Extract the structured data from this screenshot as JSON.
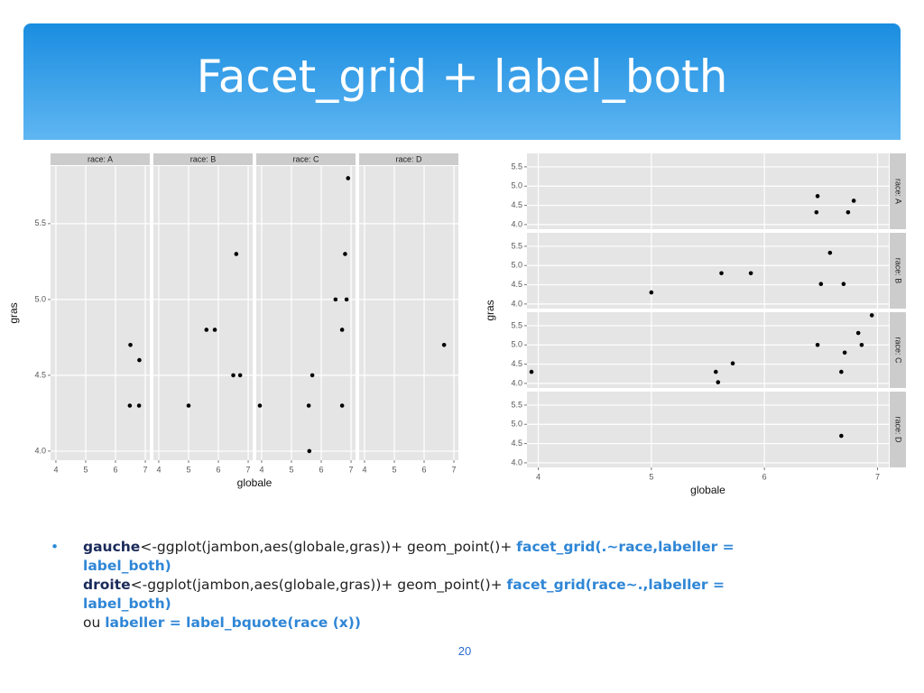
{
  "title": "Facet_grid + label_both",
  "chart_data": [
    {
      "type": "scatter",
      "facet_layout": "cols",
      "xlabel": "globale",
      "ylabel": "gras",
      "xlim": [
        3.82,
        7.15
      ],
      "ylim": [
        3.94,
        5.88
      ],
      "xticks": [
        4,
        5,
        6,
        7
      ],
      "yticks": [
        {
          "value": 4.0,
          "label": "4.0"
        },
        {
          "value": 4.5,
          "label": "4.5"
        },
        {
          "value": 5.0,
          "label": "5.0"
        },
        {
          "value": 5.5,
          "label": "5.5"
        }
      ],
      "grid": true,
      "color": "#000000",
      "facets": [
        {
          "label": "race: A",
          "x": [
            6.5,
            6.8,
            6.48,
            6.79
          ],
          "y": [
            4.7,
            4.6,
            4.3,
            4.3
          ]
        },
        {
          "label": "race: B",
          "x": [
            6.6,
            5.6,
            5.88,
            6.5,
            6.73,
            5.0
          ],
          "y": [
            5.3,
            4.8,
            4.8,
            4.5,
            4.5,
            4.3
          ]
        },
        {
          "label": "race: C",
          "x": [
            6.9,
            6.8,
            6.48,
            6.85,
            6.7,
            5.7,
            3.94,
            5.58,
            6.7,
            5.6
          ],
          "y": [
            5.8,
            5.3,
            5.0,
            5.0,
            4.8,
            4.5,
            4.3,
            4.3,
            4.3,
            4.0
          ]
        },
        {
          "label": "race: D",
          "x": [
            6.67
          ],
          "y": [
            4.7
          ]
        }
      ]
    },
    {
      "type": "scatter",
      "facet_layout": "rows",
      "xlabel": "globale",
      "ylabel": "gras",
      "xlim": [
        3.9,
        7.1
      ],
      "ylim": [
        3.88,
        5.85
      ],
      "xticks": [
        4,
        5,
        6,
        7
      ],
      "yticks": [
        {
          "value": 4.0,
          "label": "4.0"
        },
        {
          "value": 4.5,
          "label": "4.5"
        },
        {
          "value": 5.0,
          "label": "5.0"
        },
        {
          "value": 5.5,
          "label": "5.5"
        }
      ],
      "grid": true,
      "color": "#000000",
      "facets": [
        {
          "label": "race: A",
          "x": [
            6.47,
            6.79,
            6.46,
            6.74
          ],
          "y": [
            4.74,
            4.62,
            4.32,
            4.32
          ]
        },
        {
          "label": "race: B",
          "x": [
            6.58,
            5.62,
            5.88,
            6.5,
            6.7,
            5.0
          ],
          "y": [
            5.33,
            4.8,
            4.8,
            4.52,
            4.52,
            4.3
          ]
        },
        {
          "label": "race: C",
          "x": [
            6.95,
            6.83,
            6.47,
            6.86,
            6.71,
            5.72,
            3.94,
            5.57,
            6.68,
            5.59
          ],
          "y": [
            5.77,
            5.31,
            5.0,
            5.0,
            4.8,
            4.52,
            4.3,
            4.3,
            4.3,
            4.03
          ]
        },
        {
          "label": "race: D",
          "x": [
            6.68
          ],
          "y": [
            4.7
          ]
        }
      ]
    }
  ],
  "bullet": [
    {
      "bold": "gauche",
      "text": "<-ggplot(jambon,aes(globale,gras))+ geom_point()+ ",
      "code": "facet_grid(.~race,labeller = label_both)"
    },
    {
      "bold": "droite",
      "text": "<-ggplot(jambon,aes(globale,gras))+ geom_point()+ ",
      "code": "facet_grid(race~.,labeller = label_both)"
    },
    {
      "text": "ou ",
      "code": "labeller = label_bquote(race (x))"
    }
  ],
  "page_number": "20"
}
